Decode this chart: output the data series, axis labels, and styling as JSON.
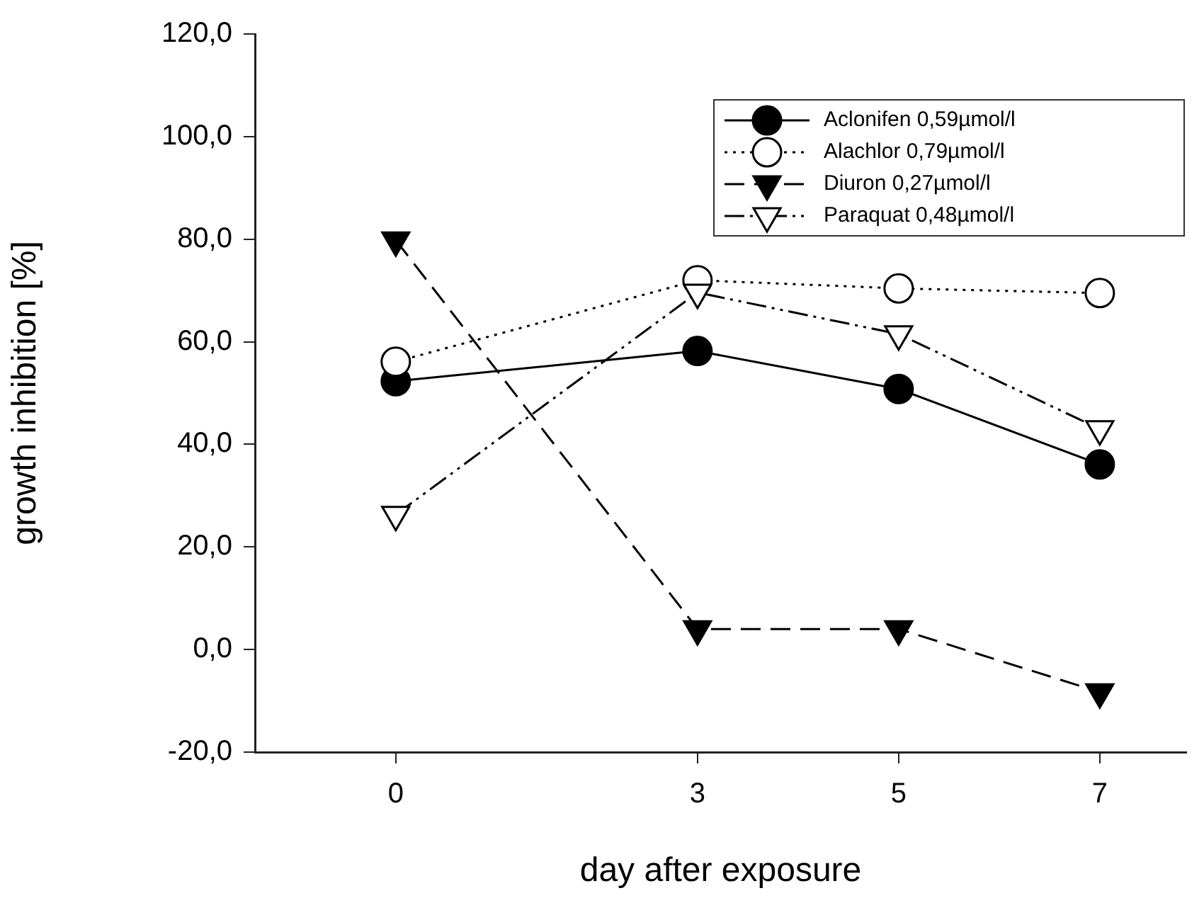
{
  "chart_data": {
    "type": "line",
    "xlabel": "day after exposure",
    "ylabel": "growth inhibition [%]",
    "xlim": [
      -1.4,
      7.86
    ],
    "xticks": [
      0,
      3,
      5,
      7
    ],
    "ylim": [
      -20,
      120
    ],
    "yticks": [
      {
        "value": -20,
        "label": "-20,0"
      },
      {
        "value": 0,
        "label": "0,0"
      },
      {
        "value": 20,
        "label": "20,0"
      },
      {
        "value": 40,
        "label": "40,0"
      },
      {
        "value": 60,
        "label": "60,0"
      },
      {
        "value": 80,
        "label": "80,0"
      },
      {
        "value": 100,
        "label": "100,0"
      },
      {
        "value": 120,
        "label": "120,0"
      }
    ],
    "x": [
      0,
      3,
      5,
      7
    ],
    "grid": false,
    "legend": "top right",
    "series": [
      {
        "name": "Aclonifen 0,59µmol/l",
        "color": "#000000",
        "values": [
          52.3,
          58.2,
          50.8,
          36.1
        ],
        "marker": "circle",
        "line_style": "solid"
      },
      {
        "name": "Alachlor 0,79µmol/l",
        "color": "#000000",
        "values": [
          56.1,
          72.0,
          70.4,
          69.5
        ],
        "colors": [
          "#ffffff",
          "#ffffff",
          "#ffffff",
          "#ffffff"
        ],
        "marker": "circle",
        "line_style": "dotted"
      },
      {
        "name": "Diuron 0,27µmol/l",
        "color": "#000000",
        "values": [
          79.8,
          4.0,
          4.0,
          -8.3
        ],
        "marker": "triangle_down",
        "line_style": "dashed"
      },
      {
        "name": "Paraquat 0,48µmol/l",
        "color": "#000000",
        "values": [
          26.3,
          69.6,
          61.5,
          43.0
        ],
        "colors": [
          "#ffffff",
          "#ffffff",
          "#ffffff",
          "#ffffff"
        ],
        "marker": "triangle_down",
        "line_style": "dashdotdot"
      }
    ]
  }
}
